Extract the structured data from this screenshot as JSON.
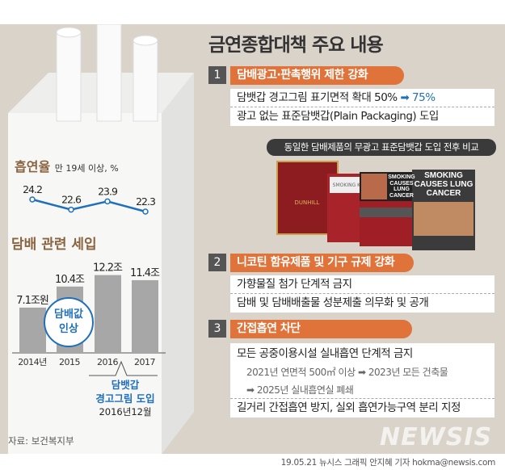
{
  "title": "금연종합대책 주요 내용",
  "sections": [
    {
      "num": "1",
      "heading": "담배광고·판촉행위 제한 강화",
      "items": [
        "담뱃갑 경고그림 표기면적 확대 50%",
        "광고 없는 표준담뱃갑(Plain Packaging) 도입"
      ],
      "highlight": "75%"
    },
    {
      "num": "2",
      "heading": "니코틴 함유제품 및 기구 규제 강화",
      "items": [
        "가향물질 첨가 단계적 금지",
        "담배 및 담배배출물 성분제출 의무화 및 공개"
      ]
    },
    {
      "num": "3",
      "heading": "간접흡연 차단",
      "items": [
        "모든 공중이용시설 실내흡연 단계적 금지",
        "길거리 간접흡연 방지, 실외 흡연가능구역 분리 지정"
      ],
      "subitems": [
        "2021년 연면적 500㎡ 이상",
        "2023년 모든 건축물",
        "2025년 실내흡연실 폐쇄"
      ]
    }
  ],
  "photo_caption": "동일한 담배제품의 무광고 표준담뱃갑 도입 전후 비교",
  "pack_texts": [
    "DUNHILL",
    "SMOKING KILLS",
    "SMOKING CAUSES LUNG CANCER",
    "SMOKING CAUSES LUNG CANCER"
  ],
  "colors": {
    "accent": "#e0733a",
    "blue": "#1f6fba",
    "heading_brown": "#8a6440",
    "background": "#d9d3ca"
  },
  "chart_data": [
    {
      "type": "line",
      "title": "흡연율",
      "subtitle": "만 19세 이상, %",
      "categories": [
        "2014",
        "2015",
        "2016",
        "2017"
      ],
      "values": [
        24.2,
        22.6,
        23.9,
        22.3
      ],
      "labels": [
        "24.2",
        "22.6",
        "23.9",
        "22.3"
      ]
    },
    {
      "type": "bar",
      "title": "담배 관련 세입",
      "categories": [
        "2014년",
        "2015",
        "2016",
        "2017"
      ],
      "values": [
        7.1,
        10.4,
        12.2,
        11.4
      ],
      "labels": [
        "7.1조원",
        "10.4조",
        "12.2조",
        "11.4조"
      ],
      "annotations": {
        "price_hike": "담배값 인상",
        "warning_line1": "담뱃갑",
        "warning_line2": "경고그림 도입",
        "warning_date": "2016년12월"
      }
    }
  ],
  "source": "자료: 보건복지부",
  "credit": "19.05.21 뉴시스 그래픽 안지혜 기자 hokma@newsis.com",
  "watermark": "NEWSIS"
}
